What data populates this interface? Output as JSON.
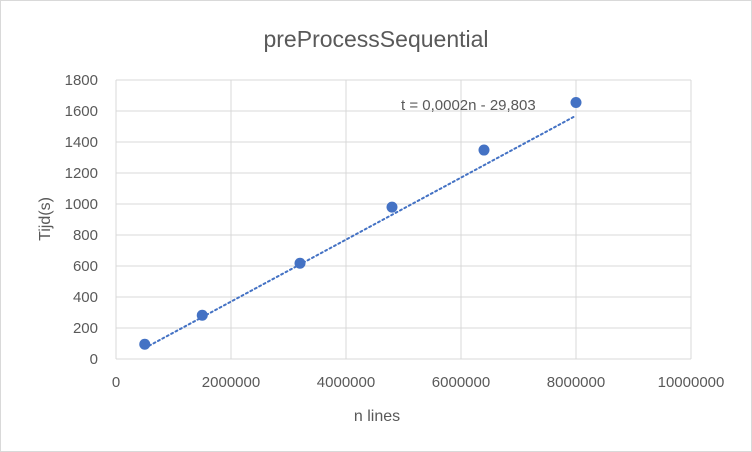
{
  "chart_data": {
    "type": "scatter",
    "title": "preProcessSequential",
    "xlabel": "n lines",
    "ylabel": "Tijd(s)",
    "xlim": [
      0,
      10000000
    ],
    "ylim": [
      0,
      1800
    ],
    "x_ticks": [
      "0",
      "2000000",
      "4000000",
      "6000000",
      "8000000",
      "10000000"
    ],
    "y_ticks": [
      "0",
      "200",
      "400",
      "600",
      "800",
      "1000",
      "1200",
      "1400",
      "1600",
      "1800"
    ],
    "grid": true,
    "legend": "none",
    "marker_color": "#4472C4",
    "trendline_color": "#4472C4",
    "points": [
      {
        "x": 500000,
        "y": 95
      },
      {
        "x": 1500000,
        "y": 282
      },
      {
        "x": 3200000,
        "y": 618
      },
      {
        "x": 4800000,
        "y": 980
      },
      {
        "x": 6400000,
        "y": 1348
      },
      {
        "x": 8000000,
        "y": 1655
      }
    ],
    "trendline": {
      "type": "linear",
      "slope": 0.0002,
      "intercept": -29.803,
      "x_range": [
        500000,
        8000000
      ],
      "label": "t = 0,0002n - 29,803"
    }
  }
}
